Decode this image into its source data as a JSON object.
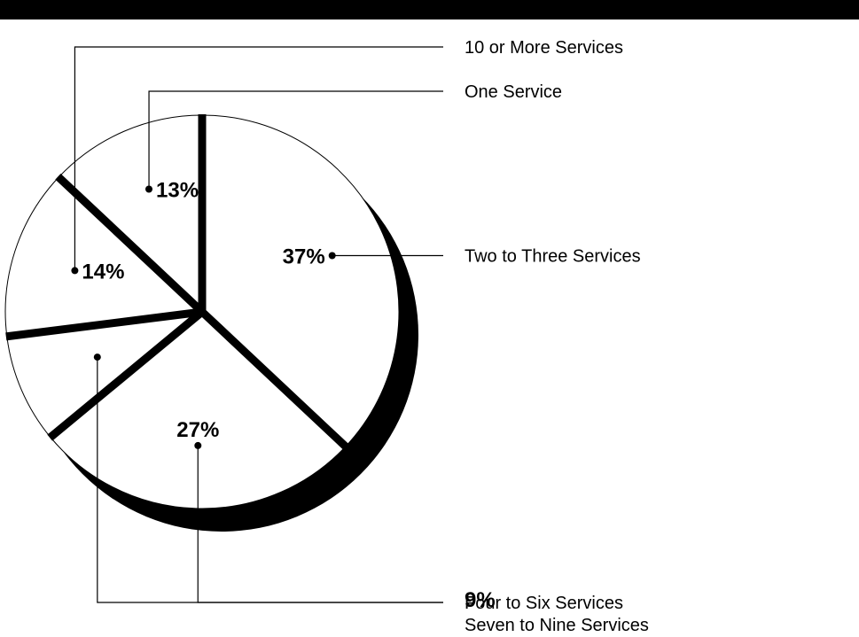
{
  "chart_data": {
    "type": "pie",
    "title": "",
    "start_angle_deg": 0,
    "direction": "clockwise",
    "slices": [
      {
        "label": "Two to Three Services",
        "value": 37,
        "value_label": "37%"
      },
      {
        "label": "Four to Six Services",
        "value": 27,
        "value_label": "27%"
      },
      {
        "label": "Seven to Nine Services",
        "value": 9,
        "value_label": "9%"
      },
      {
        "label": "10 or More Services",
        "value": 14,
        "value_label": "14%"
      },
      {
        "label": "One Service",
        "value": 13,
        "value_label": "13%"
      }
    ],
    "colors": {
      "fill": "#ffffff",
      "divider": "#000000",
      "shadow": "#000000"
    }
  }
}
